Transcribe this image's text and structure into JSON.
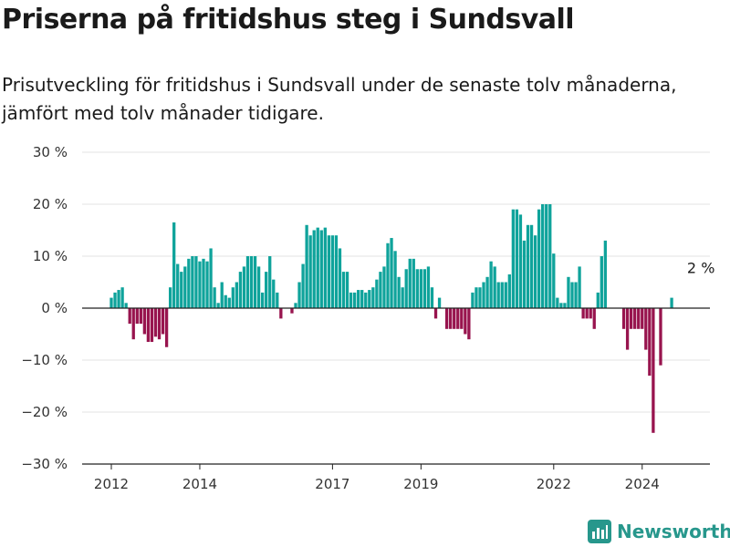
{
  "title": "Priserna på fritidshus steg i Sundsvall",
  "subtitle": "Prisutveckling för fritidshus i Sundsvall under de senaste tolv månaderna, jämfört med tolv månader tidigare.",
  "brand": {
    "name": "Newsworthy",
    "color": "#27978c"
  },
  "colors": {
    "positive": "#0fa39b",
    "negative": "#98144e",
    "grid": "#e3e3e3",
    "zero_line": "#222222"
  },
  "chart_data": {
    "type": "bar",
    "title": "Priserna på fritidshus steg i Sundsvall",
    "xlabel": "",
    "ylabel": "",
    "ylim": [
      -30,
      30
    ],
    "y_ticks": [
      30,
      20,
      10,
      0,
      -10,
      -20,
      -30
    ],
    "y_tick_labels": [
      "30 %",
      "20 %",
      "10 %",
      "0 %",
      "−10 %",
      "−20 %",
      "−30 %"
    ],
    "x_ticks": [
      "2012",
      "2014",
      "2017",
      "2019",
      "2022",
      "2024"
    ],
    "start": "2012-01",
    "grid": true,
    "annotations": [
      {
        "text": "2 %",
        "at": "2025-05",
        "value": 2
      }
    ],
    "values": [
      2,
      3,
      3.5,
      4,
      1,
      -3,
      -6,
      -3,
      -3,
      -5,
      -6.5,
      -6.5,
      -5.5,
      -6,
      -5,
      -7.5,
      4,
      16.5,
      8.5,
      7,
      8,
      9.5,
      10,
      10,
      9,
      9.5,
      9,
      11.5,
      4,
      1,
      5,
      2.5,
      2,
      4,
      5,
      7,
      8,
      10,
      10,
      10,
      8,
      3,
      7,
      10,
      5.5,
      3,
      -2,
      0,
      0,
      -1,
      1,
      5,
      8.5,
      16,
      14,
      15,
      15.5,
      15,
      15.5,
      14,
      14,
      14,
      11.5,
      7,
      7,
      3,
      3,
      3.5,
      3.5,
      3,
      3.5,
      4,
      5.5,
      7,
      8,
      12.5,
      13.5,
      11,
      6,
      4,
      7.5,
      9.5,
      9.5,
      7.5,
      7.5,
      7.5,
      8,
      4,
      -2,
      2,
      0,
      -4,
      -4,
      -4,
      -4,
      -4,
      -5,
      -6,
      3,
      4,
      4,
      5,
      6,
      9,
      8,
      5,
      5,
      5,
      6.5,
      19,
      19,
      18,
      13,
      16,
      16,
      14,
      19,
      20,
      20,
      20,
      10.5,
      2,
      1,
      1,
      6,
      5,
      5,
      8,
      -2,
      -2,
      -2,
      -4,
      3,
      10,
      13,
      0,
      0,
      0,
      0,
      -4,
      -8,
      -4,
      -4,
      -4,
      -4,
      -8,
      -13,
      -24,
      0,
      -11,
      0,
      0,
      2
    ]
  }
}
